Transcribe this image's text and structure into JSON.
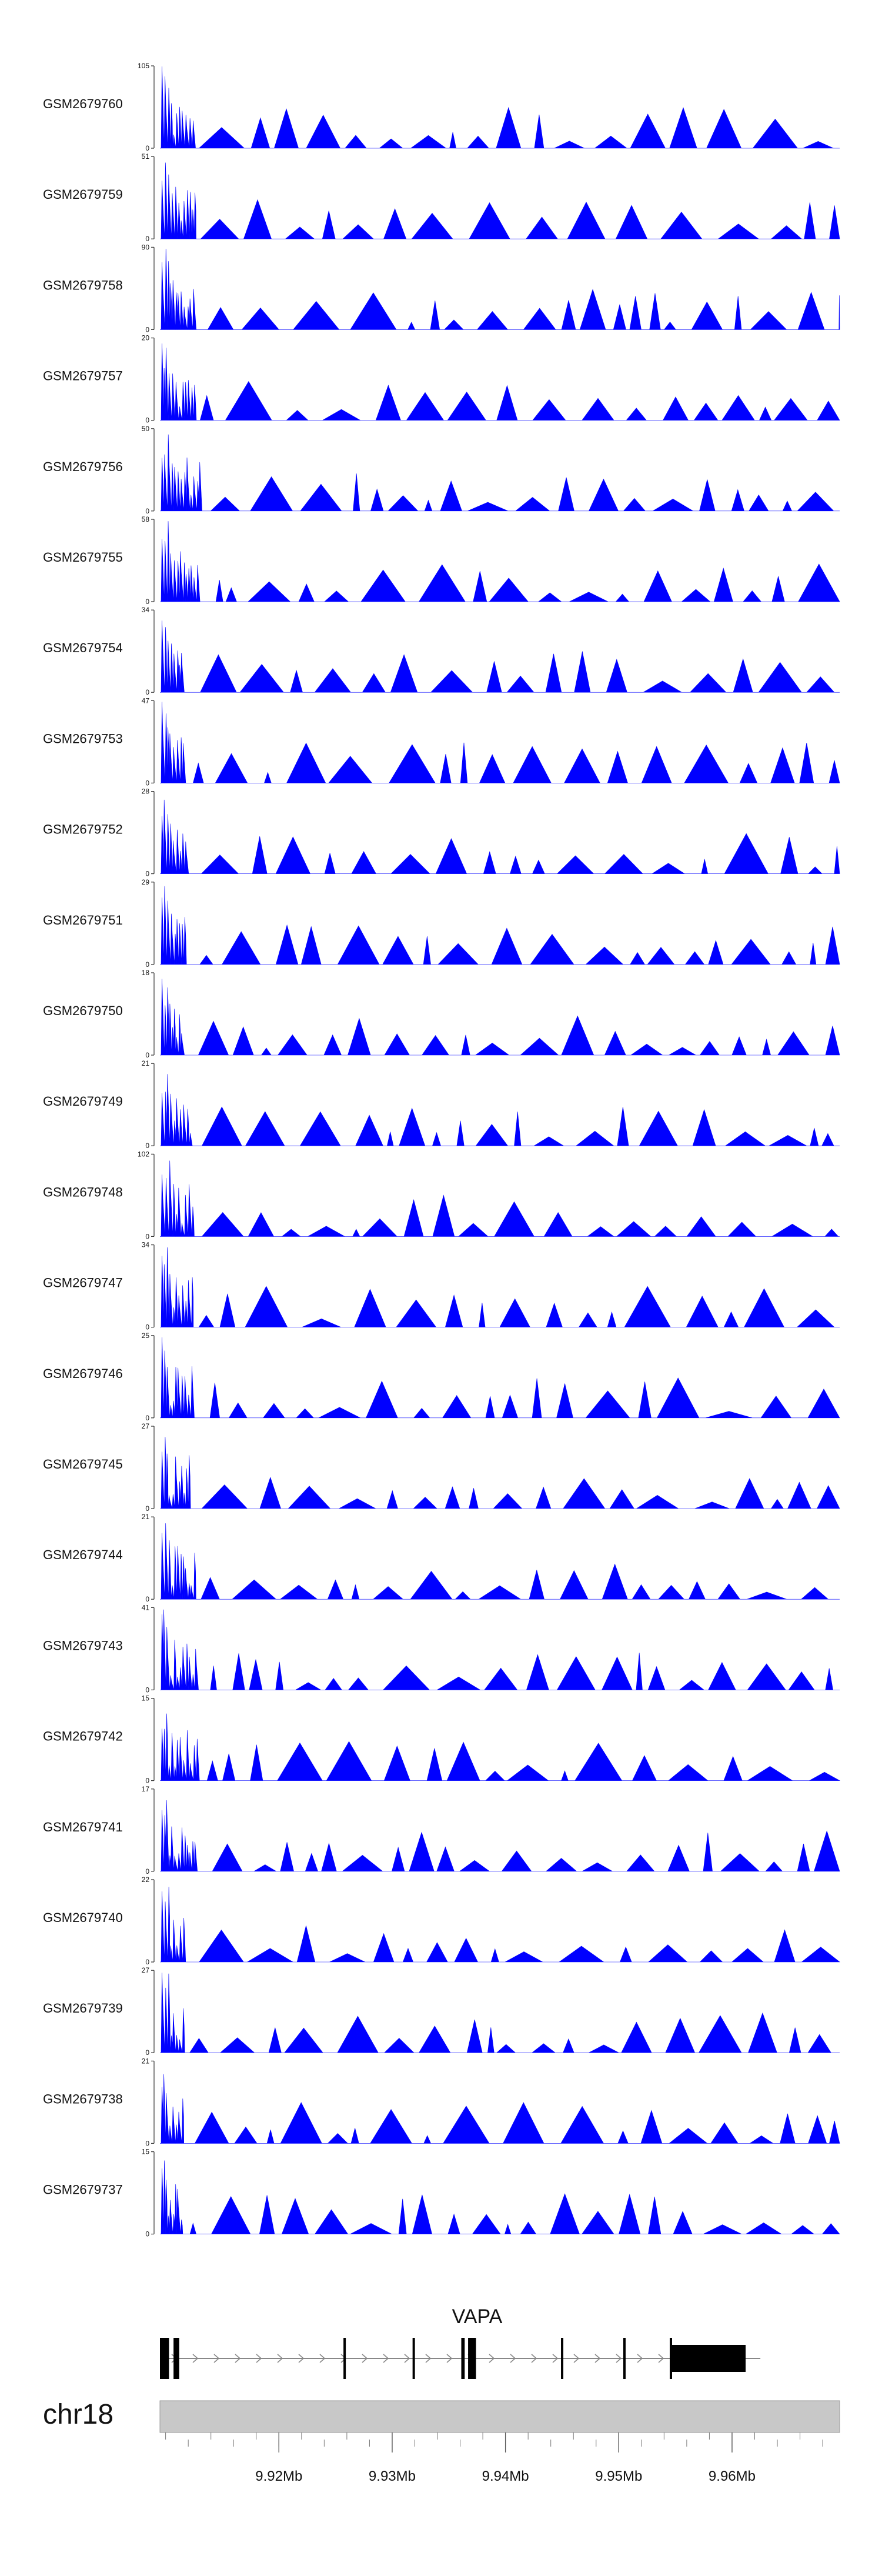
{
  "chart_data": {
    "type": "area",
    "title": "",
    "chromosome": "chr18",
    "gene": "VAPA",
    "x_range_mb": [
      9.9095,
      9.9695
    ],
    "x_ticks": [
      9.92,
      9.93,
      9.94,
      9.95,
      9.96
    ],
    "x_tick_labels": [
      "9.92Mb",
      "9.93Mb",
      "9.94Mb",
      "9.95Mb",
      "9.96Mb"
    ],
    "series_color": "#0000ff",
    "tracks": [
      {
        "name": "GSM2679760",
        "ymax": 105,
        "ymin": 0
      },
      {
        "name": "GSM2679759",
        "ymax": 51,
        "ymin": 0
      },
      {
        "name": "GSM2679758",
        "ymax": 90,
        "ymin": 0
      },
      {
        "name": "GSM2679757",
        "ymax": 20,
        "ymin": 0
      },
      {
        "name": "GSM2679756",
        "ymax": 50,
        "ymin": 0
      },
      {
        "name": "GSM2679755",
        "ymax": 58,
        "ymin": 0
      },
      {
        "name": "GSM2679754",
        "ymax": 34,
        "ymin": 0
      },
      {
        "name": "GSM2679753",
        "ymax": 47,
        "ymin": 0
      },
      {
        "name": "GSM2679752",
        "ymax": 28,
        "ymin": 0
      },
      {
        "name": "GSM2679751",
        "ymax": 29,
        "ymin": 0
      },
      {
        "name": "GSM2679750",
        "ymax": 18,
        "ymin": 0
      },
      {
        "name": "GSM2679749",
        "ymax": 21,
        "ymin": 0
      },
      {
        "name": "GSM2679748",
        "ymax": 102,
        "ymin": 0
      },
      {
        "name": "GSM2679747",
        "ymax": 34,
        "ymin": 0
      },
      {
        "name": "GSM2679746",
        "ymax": 25,
        "ymin": 0
      },
      {
        "name": "GSM2679745",
        "ymax": 27,
        "ymin": 0
      },
      {
        "name": "GSM2679744",
        "ymax": 21,
        "ymin": 0
      },
      {
        "name": "GSM2679743",
        "ymax": 41,
        "ymin": 0
      },
      {
        "name": "GSM2679742",
        "ymax": 15,
        "ymin": 0
      },
      {
        "name": "GSM2679741",
        "ymax": 17,
        "ymin": 0
      },
      {
        "name": "GSM2679740",
        "ymax": 22,
        "ymin": 0
      },
      {
        "name": "GSM2679739",
        "ymax": 27,
        "ymin": 0
      },
      {
        "name": "GSM2679738",
        "ymax": 21,
        "ymin": 0
      },
      {
        "name": "GSM2679737",
        "ymax": 15,
        "ymin": 0
      }
    ],
    "gene_model": {
      "name": "VAPA",
      "start_mb": 9.9095,
      "end_mb": 9.9625,
      "strand": "+",
      "exons_mb": [
        [
          9.9095,
          9.9103
        ],
        [
          9.9107,
          9.9112
        ],
        [
          9.9257,
          9.9259
        ],
        [
          9.9318,
          9.932
        ],
        [
          9.9361,
          9.9364
        ],
        [
          9.9367,
          9.9374
        ],
        [
          9.9449,
          9.9451
        ],
        [
          9.9504,
          9.9506
        ],
        [
          9.9545,
          9.9547
        ],
        [
          9.9547,
          9.9612
        ]
      ]
    }
  }
}
